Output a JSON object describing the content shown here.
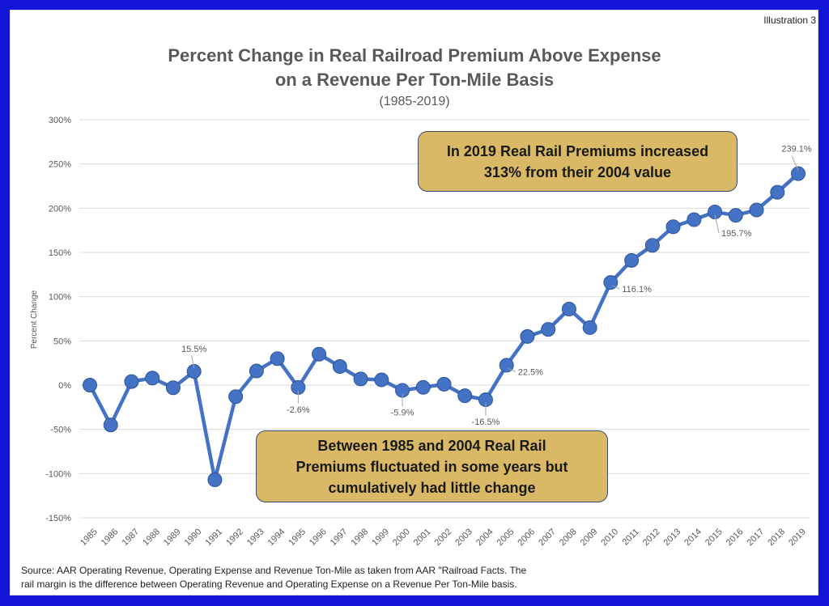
{
  "illustration_label": "Illustration 3",
  "chart_data": {
    "type": "line",
    "title_line1": "Percent Change in Real Railroad Premium Above Expense",
    "title_line2": "on a Revenue Per Ton-Mile Basis",
    "subtitle": "(1985-2019)",
    "xlabel": "",
    "ylabel": "Percent Change",
    "ylim": [
      -150,
      300
    ],
    "yticks": [
      300,
      250,
      200,
      150,
      100,
      50,
      0,
      -50,
      -100,
      -150
    ],
    "ytick_labels": [
      "300%",
      "250%",
      "200%",
      "150%",
      "100%",
      "50%",
      "0%",
      "-50%",
      "-100%",
      "-150%"
    ],
    "grid": true,
    "x": [
      "1985",
      "1986",
      "1987",
      "1988",
      "1989",
      "1990",
      "1991",
      "1992",
      "1993",
      "1994",
      "1995",
      "1996",
      "1997",
      "1998",
      "1999",
      "2000",
      "2001",
      "2002",
      "2003",
      "2004",
      "2005",
      "2006",
      "2007",
      "2008",
      "2009",
      "2010",
      "2011",
      "2012",
      "2013",
      "2014",
      "2015",
      "2016",
      "2017",
      "2018",
      "2019"
    ],
    "series": [
      {
        "name": "Percent Change",
        "color": "#4472c4",
        "values": [
          0,
          -45,
          4,
          8,
          -3,
          15.5,
          -107,
          -13,
          16,
          30,
          -2.6,
          35,
          21,
          7,
          6,
          -5.9,
          -2.5,
          1,
          -12,
          -16.5,
          22.5,
          55,
          63,
          86,
          65,
          116.1,
          141,
          158,
          179,
          187,
          195.7,
          192,
          198,
          218,
          239.1
        ]
      }
    ],
    "data_labels": [
      {
        "year": "1990",
        "text": "15.5%",
        "position": "above"
      },
      {
        "year": "1995",
        "text": "-2.6%",
        "position": "below"
      },
      {
        "year": "2000",
        "text": "-5.9%",
        "position": "below"
      },
      {
        "year": "2004",
        "text": "-16.5%",
        "position": "below"
      },
      {
        "year": "2005",
        "text": "22.5%",
        "position": "right"
      },
      {
        "year": "2010",
        "text": "116.1%",
        "position": "right"
      },
      {
        "year": "2015",
        "text": "195.7%",
        "position": "below-right"
      },
      {
        "year": "2019",
        "text": "239.1%",
        "position": "above"
      }
    ],
    "annotations": [
      {
        "text_lines": [
          "In 2019 Real Rail Premiums increased",
          "313% from their 2004 value"
        ],
        "color": "#d9b866"
      },
      {
        "text_lines": [
          "Between 1985 and 2004 Real Rail",
          "Premiums fluctuated in some years but",
          "cumulatively had little change"
        ],
        "color": "#d9b866"
      }
    ]
  },
  "source_note": {
    "line1": "Source: AAR Operating Revenue, Operating Expense and Revenue Ton-Mile as taken from AAR \"Railroad Facts. The",
    "line2": "rail margin is the difference between Operating Revenue and Operating Expense on a Revenue Per Ton-Mile basis."
  }
}
